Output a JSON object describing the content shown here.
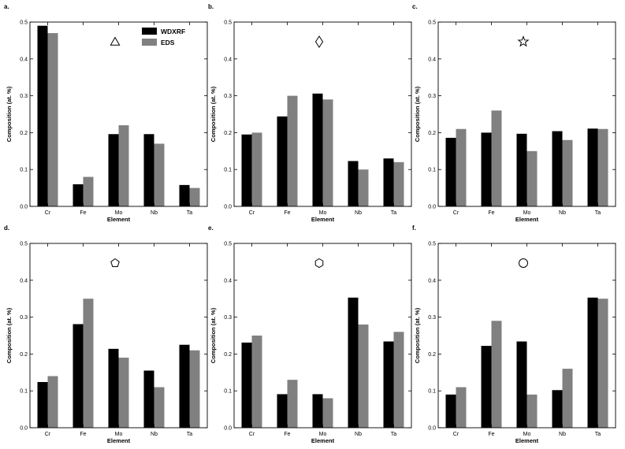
{
  "colors": {
    "wdxrf": "#000000",
    "eds": "#808080"
  },
  "legend": [
    {
      "key": "wdxrf",
      "label": "WDXRF"
    },
    {
      "key": "eds",
      "label": "EDS"
    }
  ],
  "chart_data": [
    {
      "type": "bar",
      "label": "a.",
      "marker": "triangle",
      "legend": true,
      "categories": [
        "Cr",
        "Fe",
        "Mo",
        "Nb",
        "Ta"
      ],
      "series": [
        {
          "name": "WDXRF",
          "values": [
            0.49,
            0.06,
            0.196,
            0.196,
            0.058
          ]
        },
        {
          "name": "EDS",
          "values": [
            0.47,
            0.08,
            0.22,
            0.17,
            0.05
          ]
        }
      ],
      "xlabel": "Element",
      "ylabel": "Composition (at. %)",
      "ylim": [
        0,
        0.5
      ],
      "yticks": [
        "0.0",
        "0.1",
        "0.2",
        "0.3",
        "0.4",
        "0.5"
      ]
    },
    {
      "type": "bar",
      "label": "b.",
      "marker": "diamond",
      "legend": false,
      "categories": [
        "Cr",
        "Fe",
        "Mo",
        "Nb",
        "Ta"
      ],
      "series": [
        {
          "name": "WDXRF",
          "values": [
            0.195,
            0.244,
            0.306,
            0.123,
            0.13
          ]
        },
        {
          "name": "EDS",
          "values": [
            0.2,
            0.3,
            0.29,
            0.1,
            0.12
          ]
        }
      ],
      "xlabel": "Element",
      "ylabel": "Composition (at. %)",
      "ylim": [
        0,
        0.5
      ],
      "yticks": [
        "0.0",
        "0.1",
        "0.2",
        "0.3",
        "0.4",
        "0.5"
      ]
    },
    {
      "type": "bar",
      "label": "c.",
      "marker": "star",
      "legend": false,
      "categories": [
        "Cr",
        "Fe",
        "Mo",
        "Nb",
        "Ta"
      ],
      "series": [
        {
          "name": "WDXRF",
          "values": [
            0.186,
            0.2,
            0.197,
            0.204,
            0.211
          ]
        },
        {
          "name": "EDS",
          "values": [
            0.21,
            0.26,
            0.15,
            0.18,
            0.21
          ]
        }
      ],
      "xlabel": "Element",
      "ylabel": "Composition (at. %)",
      "ylim": [
        0,
        0.5
      ],
      "yticks": [
        "0.0",
        "0.1",
        "0.2",
        "0.3",
        "0.4",
        "0.5"
      ]
    },
    {
      "type": "bar",
      "label": "d.",
      "marker": "pentagon",
      "legend": false,
      "categories": [
        "Cr",
        "Fe",
        "Mo",
        "Nb",
        "Ta"
      ],
      "series": [
        {
          "name": "WDXRF",
          "values": [
            0.124,
            0.281,
            0.214,
            0.155,
            0.225
          ]
        },
        {
          "name": "EDS",
          "values": [
            0.14,
            0.35,
            0.19,
            0.11,
            0.21
          ]
        }
      ],
      "xlabel": "Element",
      "ylabel": "Composition (at. %)",
      "ylim": [
        0,
        0.5
      ],
      "yticks": [
        "0.0",
        "0.1",
        "0.2",
        "0.3",
        "0.4",
        "0.5"
      ]
    },
    {
      "type": "bar",
      "label": "e.",
      "marker": "hexagon",
      "legend": false,
      "categories": [
        "Cr",
        "Fe",
        "Mo",
        "Nb",
        "Ta"
      ],
      "series": [
        {
          "name": "WDXRF",
          "values": [
            0.231,
            0.091,
            0.091,
            0.353,
            0.234
          ]
        },
        {
          "name": "EDS",
          "values": [
            0.25,
            0.13,
            0.08,
            0.28,
            0.26
          ]
        }
      ],
      "xlabel": "Element",
      "ylabel": "Composition (at. %)",
      "ylim": [
        0,
        0.5
      ],
      "yticks": [
        "0.0",
        "0.1",
        "0.2",
        "0.3",
        "0.4",
        "0.5"
      ]
    },
    {
      "type": "bar",
      "label": "f.",
      "marker": "circle",
      "legend": false,
      "categories": [
        "Cr",
        "Fe",
        "Mo",
        "Nb",
        "Ta"
      ],
      "series": [
        {
          "name": "WDXRF",
          "values": [
            0.09,
            0.222,
            0.234,
            0.102,
            0.353
          ]
        },
        {
          "name": "EDS",
          "values": [
            0.11,
            0.29,
            0.09,
            0.16,
            0.35
          ]
        }
      ],
      "xlabel": "Element",
      "ylabel": "Composition (at. %)",
      "ylim": [
        0,
        0.5
      ],
      "yticks": [
        "0.0",
        "0.1",
        "0.2",
        "0.3",
        "0.4",
        "0.5"
      ]
    }
  ]
}
